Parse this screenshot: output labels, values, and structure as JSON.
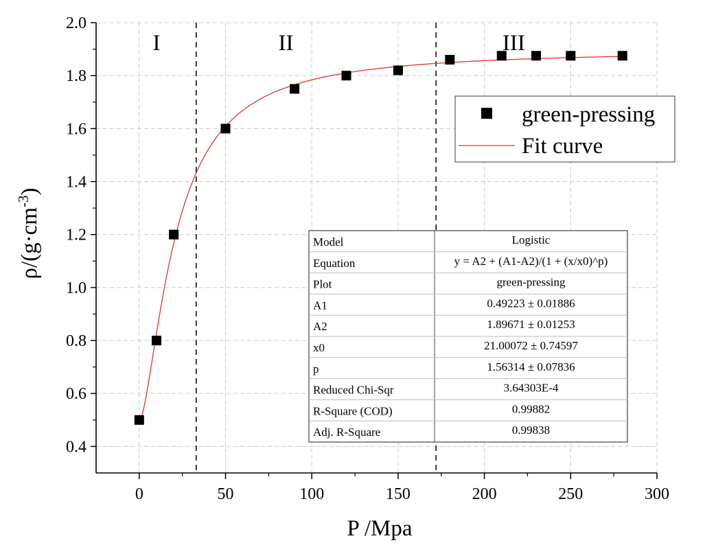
{
  "chart_data": {
    "type": "scatter",
    "xlabel": "P /Mpa",
    "ylabel_main": "ρ/(g·cm",
    "ylabel_sup": "-3",
    "ylabel_close": ")",
    "xlim": [
      -25,
      300
    ],
    "ylim": [
      0.3,
      2.0
    ],
    "xticks": [
      "0",
      "50",
      "100",
      "150",
      "200",
      "250",
      "300"
    ],
    "xtick_values": [
      0,
      50,
      100,
      150,
      200,
      250,
      300
    ],
    "yticks": [
      "0.4",
      "0.6",
      "0.8",
      "1.0",
      "1.2",
      "1.4",
      "1.6",
      "1.8",
      "2.0"
    ],
    "ytick_values": [
      0.4,
      0.6,
      0.8,
      1.0,
      1.2,
      1.4,
      1.6,
      1.8,
      2.0
    ],
    "grid": true,
    "legend_position": "top-right",
    "series": [
      {
        "name": "green-pressing",
        "marker": "square",
        "color": "#000000",
        "x": [
          0,
          10,
          20,
          50,
          90,
          120,
          150,
          180,
          210,
          230,
          250,
          280
        ],
        "y": [
          0.5,
          0.8,
          1.2,
          1.6,
          1.75,
          1.8,
          1.82,
          1.86,
          1.875,
          1.875,
          1.875,
          1.875
        ]
      },
      {
        "name": "Fit curve",
        "type": "line",
        "color": "#e0332c",
        "model": {
          "A1": 0.49223,
          "A2": 1.89671,
          "x0": 21.00072,
          "p": 1.56314
        },
        "x_range": [
          0,
          280
        ]
      }
    ],
    "vlines": [
      33,
      172
    ],
    "regions": [
      {
        "label": "I",
        "x": 10
      },
      {
        "label": "II",
        "x": 85
      },
      {
        "label": "III",
        "x": 217
      }
    ],
    "fit_table": {
      "headers": [],
      "rows": [
        [
          "Model",
          "Logistic"
        ],
        [
          "Equation",
          "y = A2 + (A1-A2)/(1 + (x/x0)^p)"
        ],
        [
          "Plot",
          "green-pressing"
        ],
        [
          "A1",
          "0.49223 ± 0.01886"
        ],
        [
          "A2",
          "1.89671 ± 0.01253"
        ],
        [
          "x0",
          "21.00072 ± 0.74597"
        ],
        [
          "p",
          "1.56314 ± 0.07836"
        ],
        [
          "Reduced Chi-Sqr",
          "3.64303E-4"
        ],
        [
          "R-Square (COD)",
          "0.99882"
        ],
        [
          "Adj. R-Square",
          "0.99838"
        ]
      ]
    }
  }
}
